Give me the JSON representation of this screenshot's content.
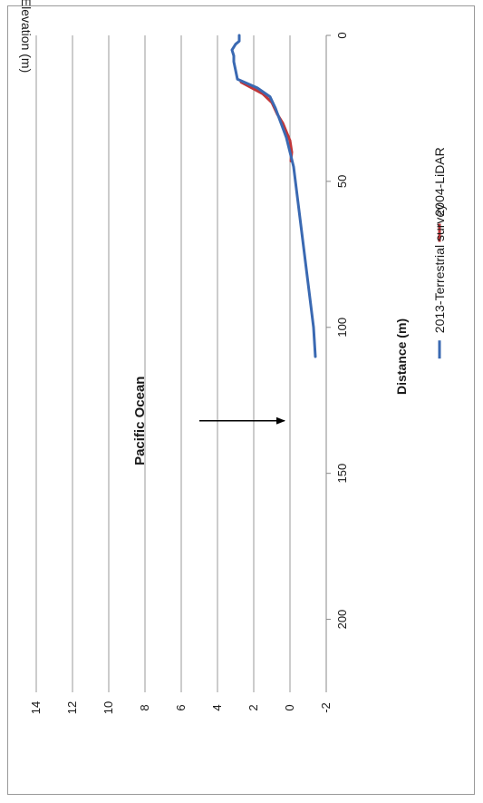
{
  "chart_data": {
    "type": "line",
    "title": "",
    "xlabel": "Distance (m)",
    "ylabel": "Elevation (m)",
    "xlim": [
      0,
      225
    ],
    "ylim": [
      -2,
      14
    ],
    "x_ticks": [
      0,
      50,
      100,
      150,
      200
    ],
    "y_ticks": [
      -2,
      0,
      2,
      4,
      6,
      8,
      10,
      12,
      14
    ],
    "grid": "horizontal",
    "orientation": "rotated 90° counter-clockwise",
    "legend_position": "bottom",
    "annotation": {
      "text": "Pacific Ocean",
      "arrow_from": [
        132,
        5.0
      ],
      "arrow_to": [
        132,
        0.3
      ]
    },
    "series": [
      {
        "name": "2004-LiDAR",
        "color": "#c0373a",
        "x": [
          16,
          20,
          23,
          27,
          30,
          33,
          36,
          40,
          43
        ],
        "y": [
          2.7,
          1.5,
          1.0,
          0.7,
          0.4,
          0.2,
          0.0,
          -0.1,
          -0.05
        ]
      },
      {
        "name": "2013-Terrestrial survey",
        "color": "#3a69b2",
        "x": [
          0,
          2,
          3,
          5,
          7,
          9,
          12,
          15,
          18,
          21,
          25,
          30,
          35,
          40,
          45,
          50,
          55,
          60,
          70,
          80,
          90,
          100,
          105,
          110
        ],
        "y": [
          2.8,
          2.8,
          3.0,
          3.2,
          3.1,
          3.1,
          3.0,
          2.9,
          1.8,
          1.1,
          0.8,
          0.5,
          0.2,
          0.0,
          -0.2,
          -0.3,
          -0.4,
          -0.5,
          -0.7,
          -0.9,
          -1.1,
          -1.3,
          -1.35,
          -1.4
        ]
      }
    ]
  }
}
